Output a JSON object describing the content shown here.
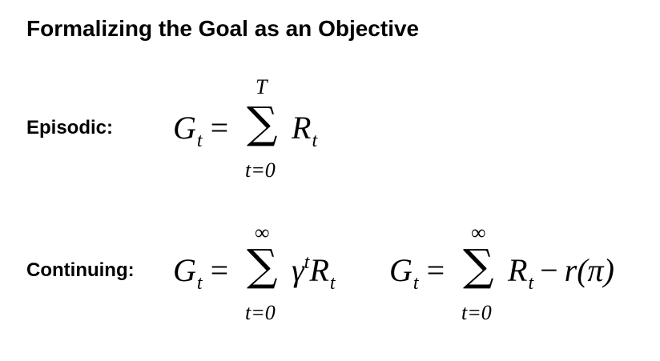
{
  "slide": {
    "title": "Formalizing the Goal as an Objective"
  },
  "episodic": {
    "label": "Episodic:",
    "lhs_symbol": "G",
    "lhs_sub": "t",
    "equals": "=",
    "sigma": "∑",
    "upper_limit": "T",
    "lower_limit": "t=0",
    "term_symbol": "R",
    "term_sub": "t"
  },
  "continuing": {
    "label": "Continuing:",
    "formula_1": {
      "lhs_symbol": "G",
      "lhs_sub": "t",
      "equals": "=",
      "sigma": "∑",
      "upper_limit": "∞",
      "lower_limit": "t=0",
      "discount": "γ",
      "discount_sup": "t",
      "term_symbol": "R",
      "term_sub": "t"
    },
    "formula_2": {
      "lhs_symbol": "G",
      "lhs_sub": "t",
      "equals": "=",
      "sigma": "∑",
      "upper_limit": "∞",
      "lower_limit": "t=0",
      "term_symbol": "R",
      "term_sub": "t",
      "minus": "−",
      "avg_reward": "r(π)"
    }
  }
}
